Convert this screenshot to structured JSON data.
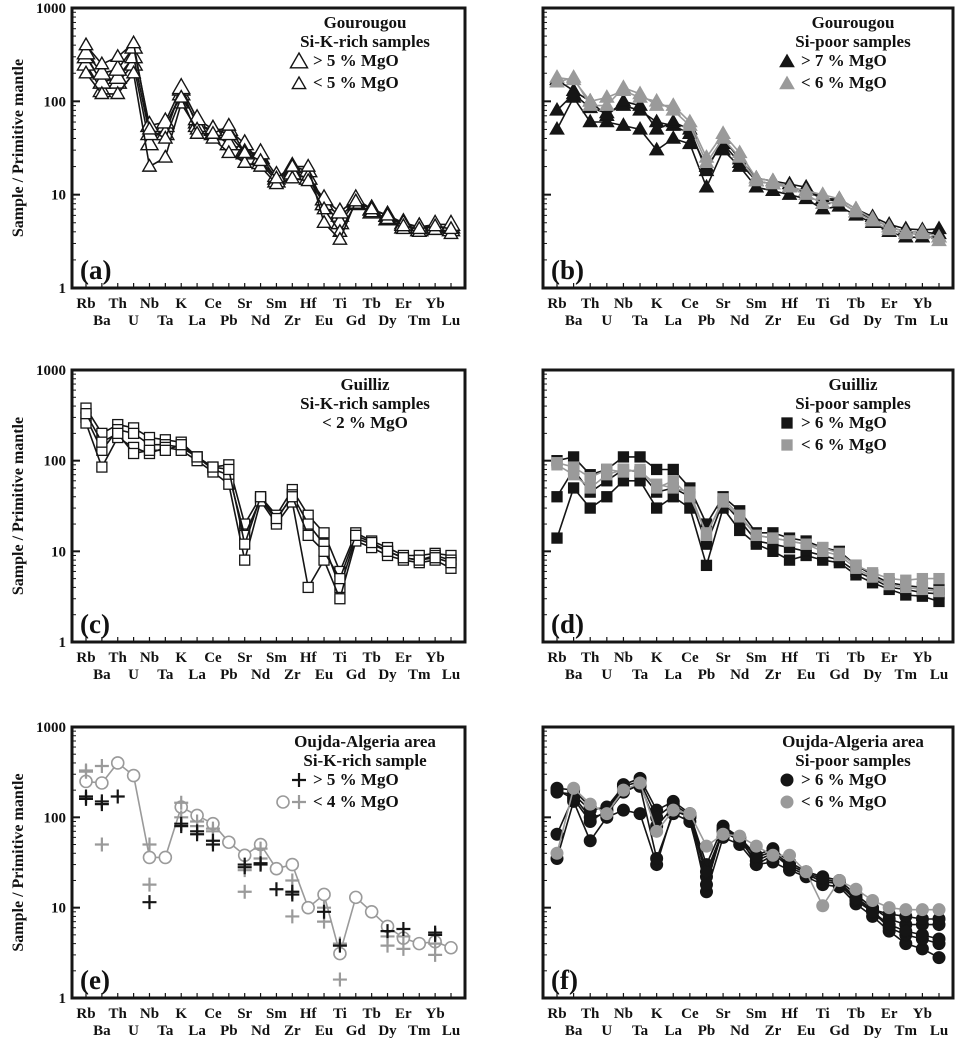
{
  "figure": {
    "ylabel": "Sample / Primitive mantle",
    "y_ticks": [
      "1000",
      "100",
      "10",
      "1"
    ],
    "x_top": [
      "Rb",
      "Th",
      "Nb",
      "K",
      "Ce",
      "Sr",
      "Sm",
      "Hf",
      "Ti",
      "Tb",
      "Er",
      "Yb"
    ],
    "x_bottom": [
      "Ba",
      "U",
      "Ta",
      "La",
      "Pb",
      "Nd",
      "Zr",
      "Eu",
      "Gd",
      "Dy",
      "Tm",
      "Lu"
    ]
  },
  "chart_data": [
    {
      "id": "a",
      "type": "line",
      "panel_label": "(a)",
      "title_lines": [
        "Gourougou",
        "Si-K-rich samples"
      ],
      "legend": [
        {
          "symbol": "triangle-open-large",
          "label": "> 5 % MgO"
        },
        {
          "symbol": "triangle-open-small",
          "label": "< 5 % MgO"
        }
      ],
      "yscale": "log",
      "ylim": [
        1,
        1000
      ],
      "x": [
        "Rb",
        "Ba",
        "Th",
        "U",
        "Nb",
        "Ta",
        "K",
        "La",
        "Ce",
        "Pb",
        "Sr",
        "Nd",
        "Sm",
        "Zr",
        "Hf",
        "Eu",
        "Ti",
        "Gd",
        "Tb",
        "Dy",
        "Er",
        "Tm",
        "Yb",
        "Lu"
      ],
      "series": [
        {
          "values": [
            250,
            130,
            160,
            250,
            35,
            55,
            120,
            60,
            45,
            35,
            30,
            25,
            15,
            18,
            15,
            8,
            6,
            8,
            6.5,
            5.5,
            4.5,
            4.2,
            4.5,
            4.5
          ],
          "style": "tri-open-large"
        },
        {
          "values": [
            300,
            160,
            180,
            300,
            45,
            45,
            135,
            55,
            50,
            50,
            35,
            22,
            14,
            20,
            18,
            8,
            5,
            8.5,
            7,
            6,
            5,
            4.5,
            4.5,
            4.2
          ],
          "style": "tri-open-large"
        },
        {
          "values": [
            330,
            200,
            220,
            380,
            55,
            60,
            140,
            65,
            50,
            45,
            28,
            28,
            16,
            17,
            15,
            9,
            6.5,
            9,
            7,
            6,
            4.8,
            4.5,
            4.8,
            4.8
          ],
          "style": "tri-open-large"
        },
        {
          "values": [
            200,
            120,
            120,
            200,
            20,
            25,
            95,
            50,
            40,
            28,
            22,
            20,
            13,
            15,
            14,
            7,
            4,
            8,
            6.5,
            5.5,
            4.3,
            4,
            4.2,
            3.8
          ],
          "style": "tri-open-small"
        },
        {
          "values": [
            400,
            250,
            300,
            420,
            50,
            40,
            110,
            45,
            45,
            55,
            28,
            23,
            15,
            20,
            20,
            5,
            3.3,
            8.5,
            7,
            6,
            4.6,
            4.3,
            4.6,
            4.3
          ],
          "style": "tri-open-small"
        }
      ]
    },
    {
      "id": "b",
      "type": "line",
      "panel_label": "(b)",
      "title_lines": [
        "Gourougou",
        "Si-poor samples"
      ],
      "legend": [
        {
          "symbol": "triangle-black",
          "label": "> 7 % MgO"
        },
        {
          "symbol": "triangle-gray",
          "label": "< 6 % MgO"
        }
      ],
      "yscale": "log",
      "ylim": [
        1,
        1000
      ],
      "x": [
        "Rb",
        "Ba",
        "Th",
        "U",
        "Nb",
        "Ta",
        "K",
        "La",
        "Ce",
        "Pb",
        "Sr",
        "Nd",
        "Sm",
        "Zr",
        "Hf",
        "Eu",
        "Ti",
        "Gd",
        "Tb",
        "Dy",
        "Er",
        "Tm",
        "Yb",
        "Lu"
      ],
      "series": [
        {
          "values": [
            80,
            120,
            85,
            75,
            90,
            80,
            60,
            55,
            45,
            20,
            35,
            22,
            14,
            13,
            12,
            11,
            9,
            8.5,
            6.5,
            5.5,
            4.5,
            4,
            4,
            3.8
          ],
          "style": "tri-black"
        },
        {
          "values": [
            50,
            110,
            60,
            60,
            55,
            50,
            30,
            40,
            35,
            12,
            30,
            20,
            12,
            11,
            10,
            9,
            7,
            7.5,
            6,
            5,
            4,
            3.5,
            3.5,
            3.5
          ],
          "style": "tri-black"
        },
        {
          "values": [
            170,
            130,
            100,
            70,
            100,
            90,
            50,
            60,
            50,
            18,
            40,
            24,
            15,
            14,
            13,
            12,
            9,
            9,
            7,
            5.8,
            4.8,
            4.3,
            4.2,
            4.3
          ],
          "style": "tri-black"
        },
        {
          "values": [
            160,
            180,
            90,
            90,
            140,
            120,
            90,
            90,
            60,
            25,
            45,
            28,
            15,
            14,
            12,
            11,
            10,
            9,
            7,
            5.5,
            4.5,
            4,
            4,
            3.5
          ],
          "style": "tri-gray"
        },
        {
          "values": [
            180,
            170,
            100,
            110,
            130,
            110,
            100,
            80,
            55,
            22,
            40,
            25,
            14,
            13,
            12,
            10,
            8,
            8.5,
            6.5,
            5.2,
            4.2,
            3.8,
            3.8,
            3.2
          ],
          "style": "tri-gray"
        }
      ]
    },
    {
      "id": "c",
      "type": "line",
      "panel_label": "(c)",
      "title_lines": [
        "Guilliz",
        "Si-K-rich samples",
        "< 2 % MgO"
      ],
      "legend": [],
      "yscale": "log",
      "ylim": [
        1,
        1000
      ],
      "x": [
        "Rb",
        "Ba",
        "Th",
        "U",
        "Nb",
        "Ta",
        "K",
        "La",
        "Ce",
        "Pb",
        "Sr",
        "Nd",
        "Sm",
        "Zr",
        "Hf",
        "Eu",
        "Ti",
        "Gd",
        "Tb",
        "Dy",
        "Er",
        "Tm",
        "Yb",
        "Lu"
      ],
      "series": [
        {
          "values": [
            380,
            200,
            250,
            230,
            180,
            170,
            160,
            110,
            85,
            90,
            20,
            40,
            25,
            48,
            25,
            16,
            6,
            16,
            13,
            11,
            9,
            9,
            9.5,
            9
          ],
          "style": "sq-open"
        },
        {
          "values": [
            300,
            130,
            220,
            200,
            150,
            150,
            140,
            110,
            80,
            70,
            15,
            38,
            22,
            42,
            20,
            12,
            4,
            14,
            12,
            10,
            8.5,
            8,
            9,
            8
          ],
          "style": "sq-open"
        },
        {
          "values": [
            260,
            85,
            180,
            140,
            120,
            140,
            130,
            100,
            75,
            55,
            8,
            36,
            20,
            35,
            4,
            8,
            3,
            13,
            11,
            9,
            8,
            7.5,
            8,
            6.5
          ],
          "style": "sq-open"
        },
        {
          "values": [
            330,
            160,
            200,
            120,
            130,
            130,
            150,
            110,
            85,
            80,
            12,
            40,
            23,
            40,
            15,
            10,
            5,
            15,
            12.5,
            10,
            8.5,
            8,
            8.5,
            7.5
          ],
          "style": "sq-open"
        }
      ]
    },
    {
      "id": "d",
      "type": "line",
      "panel_label": "(d)",
      "title_lines": [
        "Guilliz",
        "Si-poor samples"
      ],
      "legend": [
        {
          "symbol": "square-black",
          "label": "> 6 % MgO"
        },
        {
          "symbol": "square-gray",
          "label": "< 6 % MgO"
        }
      ],
      "yscale": "log",
      "ylim": [
        1,
        1000
      ],
      "x": [
        "Rb",
        "Ba",
        "Th",
        "U",
        "Nb",
        "Ta",
        "K",
        "La",
        "Ce",
        "Pb",
        "Sr",
        "Nd",
        "Sm",
        "Zr",
        "Hf",
        "Eu",
        "Ti",
        "Gd",
        "Tb",
        "Dy",
        "Er",
        "Tm",
        "Yb",
        "Lu"
      ],
      "series": [
        {
          "values": [
            100,
            110,
            70,
            80,
            110,
            110,
            80,
            80,
            50,
            20,
            40,
            28,
            16,
            16,
            14,
            13,
            11,
            10,
            7,
            5.5,
            4.5,
            4.2,
            4,
            3.8
          ],
          "style": "sq-black"
        },
        {
          "values": [
            14,
            50,
            30,
            40,
            60,
            60,
            30,
            40,
            30,
            7,
            30,
            17,
            12,
            10,
            8,
            9,
            8,
            7.5,
            5.5,
            4.5,
            3.8,
            3.3,
            3.2,
            2.8
          ],
          "style": "sq-black"
        },
        {
          "values": [
            40,
            80,
            45,
            60,
            80,
            75,
            45,
            50,
            40,
            12,
            35,
            22,
            13,
            12,
            11,
            10,
            9,
            8,
            6,
            5,
            4,
            3.8,
            3.5,
            3.4
          ],
          "style": "sq-black"
        },
        {
          "values": [
            90,
            70,
            50,
            70,
            80,
            75,
            55,
            50,
            45,
            15,
            38,
            25,
            15,
            14,
            13,
            12,
            10,
            9,
            6.5,
            5.2,
            4.3,
            4,
            3.8,
            3.6
          ],
          "style": "sq-gray"
        },
        {
          "values": [
            95,
            85,
            65,
            80,
            75,
            80,
            50,
            60,
            40,
            16,
            35,
            24,
            15,
            14,
            13,
            12,
            11,
            9.5,
            7,
            5.8,
            5,
            4.8,
            5,
            5
          ],
          "style": "sq-gray"
        }
      ]
    },
    {
      "id": "e",
      "type": "line",
      "panel_label": "(e)",
      "title_lines": [
        "Oujda-Algeria area",
        "Si-K-rich sample"
      ],
      "legend": [
        {
          "symbol": "plus-black",
          "label": "> 5 % MgO"
        },
        {
          "symbol": "circle-gray-plus-gray",
          "label": "< 4 % MgO"
        }
      ],
      "yscale": "log",
      "ylim": [
        1,
        1000
      ],
      "x": [
        "Rb",
        "Ba",
        "Th",
        "U",
        "Nb",
        "Ta",
        "K",
        "La",
        "Ce",
        "Pb",
        "Sr",
        "Nd",
        "Sm",
        "Zr",
        "Hf",
        "Eu",
        "Ti",
        "Gd",
        "Tb",
        "Dy",
        "Er",
        "Tm",
        "Yb",
        "Lu"
      ],
      "series": [
        {
          "values": [
            250,
            240,
            400,
            290,
            36,
            36,
            130,
            105,
            85,
            53,
            38,
            50,
            27,
            30,
            10,
            14,
            3.1,
            13,
            9,
            6.2,
            4.6,
            4,
            4.2,
            3.6
          ],
          "style": "circle-gray"
        },
        {
          "values": [
            330,
            370,
            null,
            null,
            50,
            null,
            145,
            90,
            75,
            null,
            26,
            45,
            null,
            20,
            null,
            10,
            4,
            null,
            null,
            4.8,
            4.8,
            null,
            4,
            null
          ],
          "style": "plus-gray-points"
        },
        {
          "values": [
            320,
            50,
            null,
            null,
            18,
            null,
            100,
            80,
            70,
            null,
            15,
            35,
            null,
            8,
            null,
            7,
            1.6,
            null,
            null,
            3.8,
            3.5,
            null,
            3,
            null
          ],
          "style": "plus-gray-points"
        },
        {
          "values": [
            170,
            140,
            170,
            null,
            11.5,
            null,
            80,
            70,
            55,
            null,
            30,
            31,
            16,
            14,
            null,
            9,
            3.8,
            null,
            null,
            5.5,
            5.8,
            null,
            5,
            null
          ],
          "style": "plus-black-points"
        },
        {
          "values": [
            160,
            150,
            null,
            null,
            null,
            null,
            85,
            65,
            50,
            null,
            28,
            30,
            null,
            15,
            null,
            null,
            null,
            null,
            null,
            null,
            null,
            null,
            5.3,
            null
          ],
          "style": "plus-black-points"
        }
      ]
    },
    {
      "id": "f",
      "type": "line",
      "panel_label": "(f)",
      "title_lines": [
        "Oujda-Algeria area",
        "Si-poor samples"
      ],
      "legend": [
        {
          "symbol": "circle-black",
          "label": "> 6 % MgO"
        },
        {
          "symbol": "circle-gray",
          "label": "< 6 % MgO"
        }
      ],
      "yscale": "log",
      "ylim": [
        1,
        1000
      ],
      "x": [
        "Rb",
        "Ba",
        "Th",
        "U",
        "Nb",
        "Ta",
        "K",
        "La",
        "Ce",
        "Pb",
        "Sr",
        "Nd",
        "Sm",
        "Zr",
        "Hf",
        "Eu",
        "Ti",
        "Gd",
        "Tb",
        "Dy",
        "Er",
        "Tm",
        "Yb",
        "Lu"
      ],
      "series": [
        {
          "values": [
            210,
            200,
            130,
            120,
            230,
            270,
            120,
            150,
            110,
            30,
            80,
            60,
            38,
            45,
            32,
            25,
            22,
            20,
            14,
            10,
            7.5,
            6.5,
            6.5,
            6.5
          ],
          "style": "circle-black"
        },
        {
          "values": [
            35,
            150,
            55,
            100,
            120,
            110,
            30,
            120,
            100,
            15,
            60,
            50,
            30,
            32,
            26,
            22,
            18,
            17,
            11,
            8,
            5.5,
            4,
            3.5,
            2.8
          ],
          "style": "circle-black"
        },
        {
          "values": [
            65,
            170,
            100,
            110,
            190,
            230,
            80,
            130,
            100,
            22,
            70,
            55,
            33,
            40,
            28,
            23,
            20,
            18,
            12,
            9,
            6,
            5,
            4.5,
            4
          ],
          "style": "circle-black"
        },
        {
          "values": [
            200,
            160,
            90,
            120,
            210,
            220,
            35,
            110,
            90,
            18,
            75,
            60,
            30,
            38,
            30,
            24,
            19,
            19,
            13,
            9.5,
            8.5,
            8,
            7.5,
            7.5
          ],
          "style": "circle-black"
        },
        {
          "values": [
            190,
            180,
            120,
            130,
            220,
            250,
            100,
            140,
            105,
            25,
            72,
            58,
            36,
            42,
            30,
            24,
            21,
            19,
            12.5,
            9,
            6.5,
            5.5,
            5,
            4.5
          ],
          "style": "circle-black"
        },
        {
          "values": [
            40,
            210,
            140,
            110,
            200,
            240,
            70,
            120,
            110,
            48,
            65,
            62,
            48,
            38,
            38,
            25,
            10.5,
            20,
            16,
            12,
            10,
            9.5,
            9.5,
            9.5
          ],
          "style": "circle-gray"
        }
      ]
    }
  ]
}
